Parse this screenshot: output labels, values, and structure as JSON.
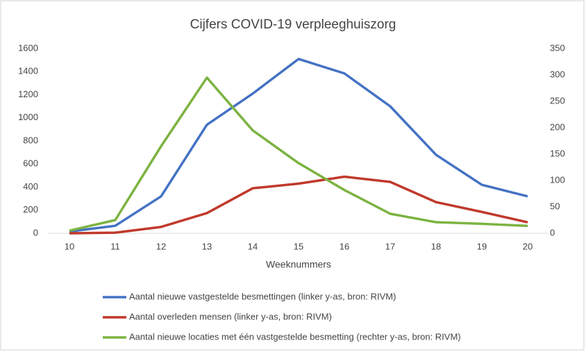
{
  "chart_data": {
    "type": "line",
    "title": "Cijfers COVID-19 verpleeghuiszorg",
    "x_label": "Weeknummers",
    "x": [
      10,
      11,
      12,
      13,
      14,
      15,
      16,
      17,
      18,
      19,
      20
    ],
    "xlim": [
      10,
      20
    ],
    "xticks": [
      10,
      11,
      12,
      13,
      14,
      15,
      16,
      17,
      18,
      19,
      20
    ],
    "ylim": [
      0,
      1600
    ],
    "yticks": [
      0,
      200,
      400,
      600,
      800,
      1000,
      1200,
      1400,
      1600
    ],
    "y2lim": [
      0,
      350
    ],
    "y2ticks": [
      0,
      50,
      100,
      150,
      200,
      250,
      300,
      350
    ],
    "legend": "bottom",
    "series": [
      {
        "name": "Aantal nieuwe vastgestelde besmettingen  (linker y-as, bron: RIVM)",
        "color": "#4472c4",
        "values": [
          15,
          65,
          320,
          940,
          1210,
          1510,
          1385,
          1100,
          680,
          420,
          320
        ]
      },
      {
        "name": "Aantal overleden mensen  (linker y-as, bron: RIVM)",
        "color": "#c0392b",
        "values": [
          0,
          5,
          55,
          175,
          390,
          430,
          490,
          445,
          270,
          185,
          95
        ]
      },
      {
        "name": "Aantal nieuwe locaties met één vastgestelde besmetting  (rechter y-as, bron: RIVM)",
        "color": "#7cb342",
        "axis": "y2",
        "values": [
          5,
          25,
          165,
          295,
          195,
          133,
          82,
          37,
          21,
          18,
          14
        ]
      }
    ]
  }
}
